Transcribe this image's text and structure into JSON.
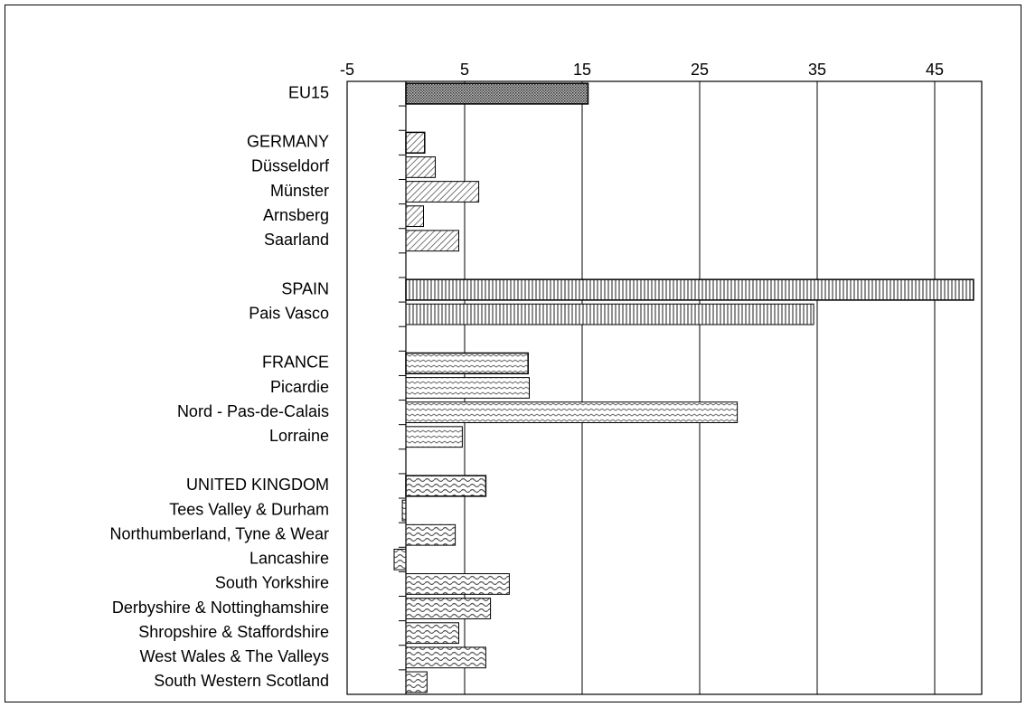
{
  "chart_data": {
    "type": "bar",
    "orientation": "horizontal",
    "categories": [
      "EU15",
      null,
      "GERMANY",
      "Düsseldorf",
      "Münster",
      "Arnsberg",
      "Saarland",
      null,
      "SPAIN",
      "Pais Vasco",
      null,
      "FRANCE",
      "Picardie",
      "Nord - Pas-de-Calais",
      "Lorraine",
      null,
      "UNITED KINGDOM",
      "Tees Valley & Durham",
      "Northumberland, Tyne & Wear",
      "Lancashire",
      "South Yorkshire",
      "Derbyshire & Nottinghamshire",
      "Shropshire & Staffordshire",
      "West Wales & The Valleys",
      "South Western Scotland"
    ],
    "values": [
      15.5,
      null,
      1.6,
      2.5,
      6.2,
      1.5,
      4.5,
      null,
      48.3,
      34.7,
      null,
      10.4,
      10.5,
      28.2,
      4.8,
      null,
      6.8,
      -0.3,
      4.2,
      -1.0,
      8.8,
      7.2,
      4.5,
      6.8,
      1.8
    ],
    "xlim": [
      -5,
      49
    ],
    "xticks": [
      -5,
      5,
      15,
      25,
      35,
      45
    ],
    "grid": true
  }
}
